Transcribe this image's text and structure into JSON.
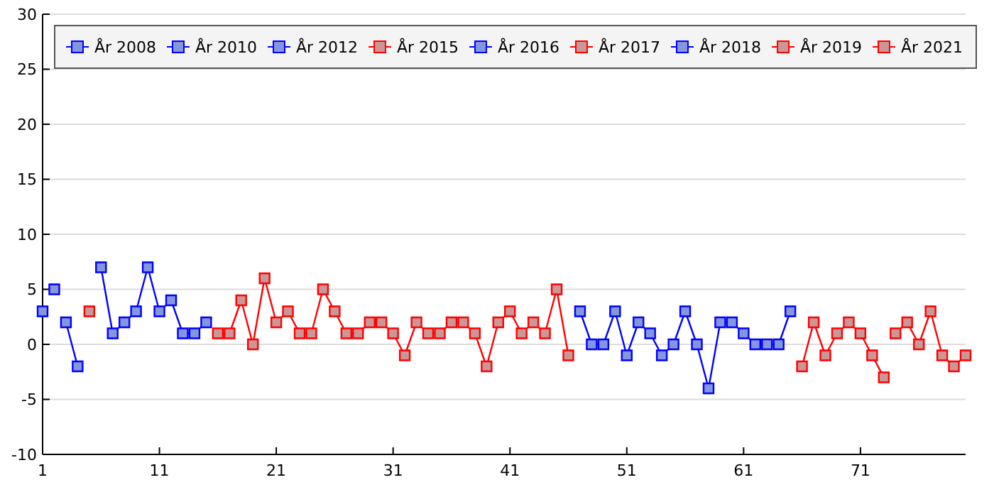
{
  "chart_data": {
    "type": "line",
    "xlim": [
      1,
      80
    ],
    "xticks": [
      1,
      11,
      21,
      31,
      41,
      51,
      61,
      71
    ],
    "ylim": [
      -10,
      30
    ],
    "yticks": [
      -10,
      -5,
      0,
      5,
      10,
      15,
      20,
      25,
      30
    ],
    "grid": "y",
    "legend": "top",
    "marker": "square",
    "line_style": "solid",
    "series": [
      {
        "name": "År 2008",
        "color": "#0000ff",
        "x": [
          1
        ],
        "values": [
          3
        ]
      },
      {
        "name": "År 2010",
        "color": "#0000ff",
        "x": [
          2
        ],
        "values": [
          5
        ]
      },
      {
        "name": "År 2012",
        "color": "#0000ff",
        "x": [
          3,
          4
        ],
        "values": [
          2,
          -2
        ]
      },
      {
        "name": "År 2015",
        "color": "#ff0000",
        "x": [
          5
        ],
        "values": [
          3
        ]
      },
      {
        "name": "År 2016",
        "color": "#0000ff",
        "x": [
          6,
          7,
          8,
          9,
          10,
          11,
          12,
          13,
          14,
          15
        ],
        "values": [
          7,
          1,
          2,
          3,
          7,
          3,
          4,
          1,
          1,
          2
        ]
      },
      {
        "name": "År 2017",
        "color": "#ff0000",
        "x": [
          16,
          17,
          18,
          19,
          20,
          21,
          22,
          23,
          24,
          25,
          26,
          27,
          28,
          29,
          30,
          31,
          32,
          33,
          34,
          35,
          36,
          37,
          38,
          39,
          40,
          41,
          42,
          43,
          44,
          45,
          46
        ],
        "values": [
          1,
          1,
          4,
          0,
          6,
          2,
          3,
          1,
          1,
          5,
          3,
          1,
          1,
          2,
          2,
          1,
          -1,
          2,
          1,
          1,
          2,
          2,
          1,
          -2,
          2,
          3,
          1,
          2,
          1,
          5,
          -1
        ]
      },
      {
        "name": "År 2018",
        "color": "#0000ff",
        "x": [
          47,
          48,
          49,
          50,
          51,
          52,
          53,
          54,
          55,
          56,
          57,
          58,
          59,
          60,
          61,
          62,
          63,
          64,
          65
        ],
        "values": [
          3,
          0,
          0,
          3,
          -1,
          2,
          1,
          -1,
          0,
          3,
          0,
          -4,
          2,
          2,
          1,
          0,
          0,
          0,
          3
        ]
      },
      {
        "name": "År 2019",
        "color": "#ff0000",
        "x": [
          66,
          67,
          68,
          69,
          70,
          71,
          72,
          73
        ],
        "values": [
          -2,
          2,
          -1,
          1,
          2,
          1,
          -1,
          -3
        ]
      },
      {
        "name": "År 2021",
        "color": "#ff0000",
        "x": [
          74,
          75,
          76,
          77,
          78,
          79,
          80
        ],
        "values": [
          1,
          2,
          0,
          3,
          -1,
          -2,
          -1
        ]
      }
    ]
  }
}
